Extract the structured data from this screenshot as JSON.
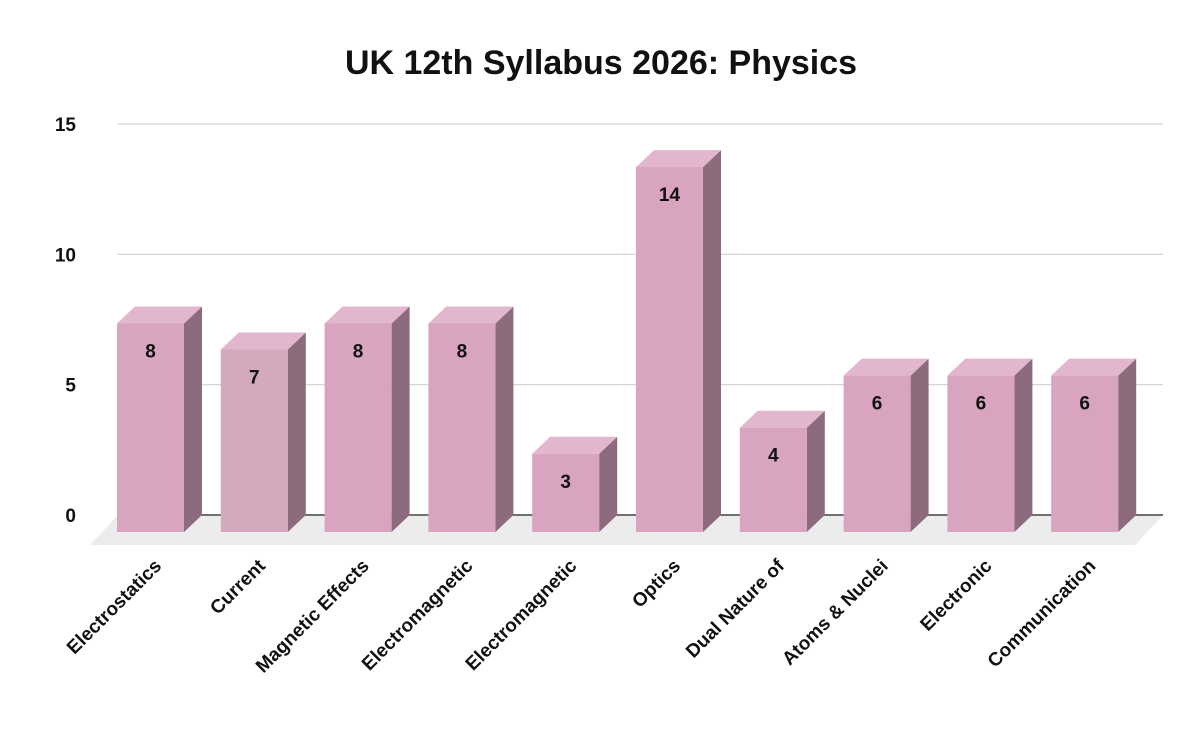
{
  "chart_data": {
    "type": "bar",
    "style": "3d-column",
    "title": "UK 12th Syllabus 2026: Physics",
    "xlabel": "",
    "ylabel": "",
    "categories": [
      "Electrostatics",
      "Current",
      "Magnetic Effects",
      "Electromagnetic",
      "Electromagnetic",
      "Optics",
      "Dual Nature of",
      "Atoms & Nuclei",
      "Electronic",
      "Communication"
    ],
    "values": [
      8,
      7,
      8,
      8,
      3,
      14,
      4,
      6,
      6,
      6
    ],
    "data_labels": [
      "8",
      "7",
      "8",
      "8",
      "3",
      "14",
      "4",
      "6",
      "6",
      "6"
    ],
    "yticks": [
      "0",
      "5",
      "10",
      "15"
    ],
    "ytick_values": [
      0,
      5,
      10,
      15
    ],
    "ylim": [
      0,
      15
    ],
    "grid": true,
    "legend": "none",
    "colors": {
      "bar_front": "#d8a4bf",
      "bar_top": "#e2b6cc",
      "bar_side": "#8c6b7c",
      "bar_front_alt": "#d4a8bd",
      "floor": "#ececec",
      "grid": "#d0d0d0",
      "axis": "#444444"
    }
  }
}
